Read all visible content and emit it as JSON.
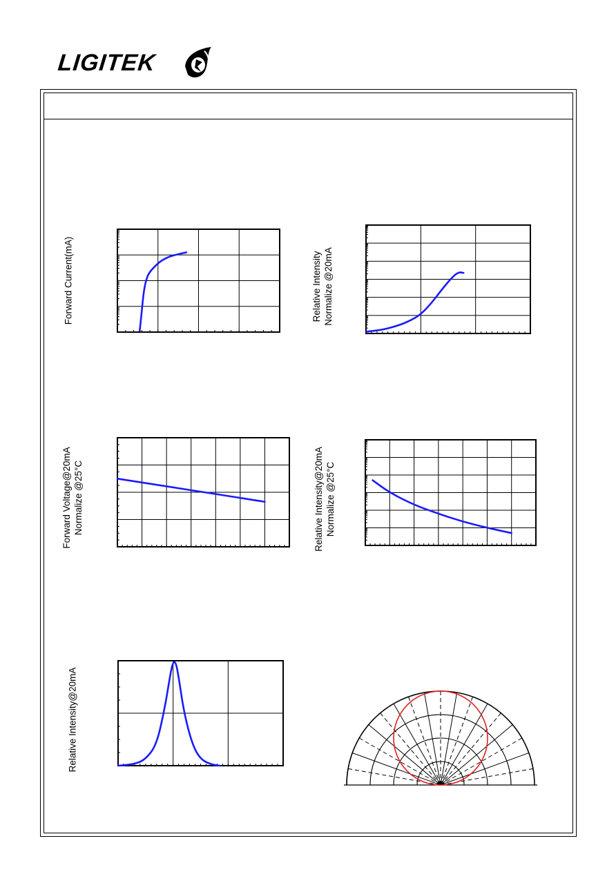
{
  "brand": {
    "name": "LIGITEK"
  },
  "colors": {
    "curve": "#1a1aff",
    "polar_curve": "#e02020",
    "grid": "#000000"
  },
  "chart_data": [
    {
      "id": "forward-current",
      "type": "line",
      "ylabel": "Forward Current(mA)",
      "xlabel": "",
      "xlim": [
        0,
        4
      ],
      "ylim": [
        0,
        4
      ],
      "grid": true,
      "series": [
        {
          "x": [
            0.55,
            0.6,
            0.65,
            0.72,
            0.8,
            0.95,
            1.1,
            1.3,
            1.55,
            1.7
          ],
          "y": [
            0.05,
            0.8,
            1.6,
            2.1,
            2.35,
            2.6,
            2.8,
            2.95,
            3.05,
            3.1
          ]
        }
      ]
    },
    {
      "id": "relative-intensity-vs-current",
      "type": "line",
      "ylabel": "Relative Intensity\nNormalize @20mA",
      "xlabel": "",
      "xlim": [
        0,
        3
      ],
      "ylim": [
        0,
        6
      ],
      "grid": true,
      "series": [
        {
          "x": [
            0.0,
            0.3,
            0.6,
            0.8,
            1.0,
            1.2,
            1.4,
            1.6,
            1.7,
            1.78
          ],
          "y": [
            0.1,
            0.2,
            0.45,
            0.7,
            1.05,
            1.7,
            2.5,
            3.2,
            3.4,
            3.35
          ]
        }
      ]
    },
    {
      "id": "forward-voltage-vs-temperature",
      "type": "line",
      "ylabel": "Forward Voltage@20mA\nNormalize @25°C",
      "xlabel": "",
      "xlim": [
        0,
        7
      ],
      "ylim": [
        0,
        4
      ],
      "grid": true,
      "series": [
        {
          "x": [
            0,
            6
          ],
          "y": [
            2.5,
            1.65
          ]
        }
      ]
    },
    {
      "id": "relative-intensity-vs-temperature",
      "type": "line",
      "ylabel": "Relative Intensity@20mA\nNormalize @25°C",
      "xlabel": "",
      "xlim": [
        0,
        7
      ],
      "ylim": [
        0,
        6
      ],
      "grid": true,
      "series": [
        {
          "x": [
            0.3,
            1.0,
            2.0,
            3.0,
            4.0,
            5.0,
            6.0
          ],
          "y": [
            3.7,
            3.0,
            2.3,
            1.8,
            1.35,
            1.0,
            0.7
          ]
        }
      ]
    },
    {
      "id": "spectral-distribution",
      "type": "line",
      "ylabel": "Relative Intensity@20mA",
      "xlabel": "",
      "xlim": [
        0,
        3
      ],
      "ylim": [
        0,
        2
      ],
      "grid": true,
      "series": [
        {
          "x": [
            0.0,
            0.3,
            0.5,
            0.7,
            0.85,
            0.95,
            1.0,
            1.05,
            1.1,
            1.2,
            1.35,
            1.5,
            1.7,
            1.85
          ],
          "y": [
            0.0,
            0.03,
            0.12,
            0.4,
            1.1,
            1.75,
            1.98,
            1.97,
            1.7,
            1.0,
            0.4,
            0.12,
            0.02,
            0.0
          ]
        }
      ]
    },
    {
      "id": "radiation-pattern",
      "type": "polar",
      "title": "",
      "angle_range_deg": [
        0,
        180
      ],
      "rings": 4,
      "series": [
        {
          "shape": "circle-through-origin",
          "relative_diameter": 0.5
        }
      ]
    }
  ]
}
